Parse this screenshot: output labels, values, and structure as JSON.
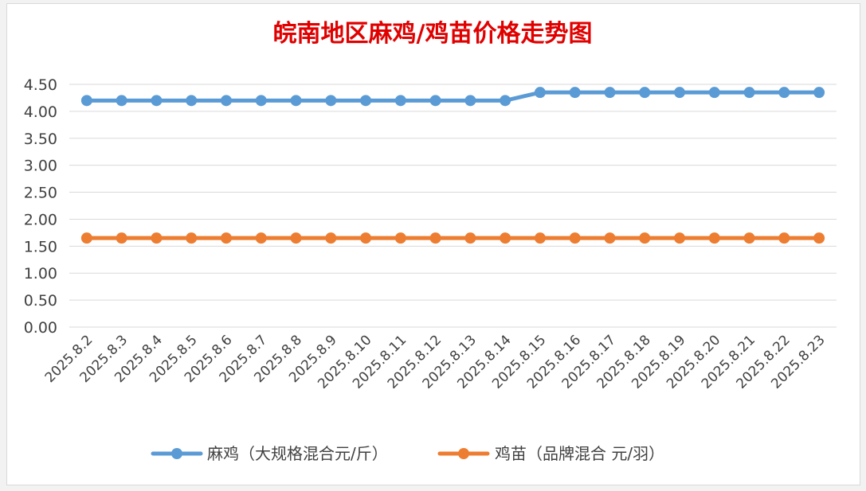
{
  "chart_data": {
    "type": "line",
    "title": "皖南地区麻鸡/鸡苗价格走势图",
    "title_color": "#e00000",
    "categories": [
      "2025.8.2",
      "2025.8.3",
      "2025.8.4",
      "2025.8.5",
      "2025.8.6",
      "2025.8.7",
      "2025.8.8",
      "2025.8.9",
      "2025.8.10",
      "2025.8.11",
      "2025.8.12",
      "2025.8.13",
      "2025.8.14",
      "2025.8.15",
      "2025.8.16",
      "2025.8.17",
      "2025.8.18",
      "2025.8.19",
      "2025.8.20",
      "2025.8.21",
      "2025.8.22",
      "2025.8.23"
    ],
    "series": [
      {
        "name": "麻鸡（大规格混合元/斤）",
        "color": "#5b9bd5",
        "values": [
          4.2,
          4.2,
          4.2,
          4.2,
          4.2,
          4.2,
          4.2,
          4.2,
          4.2,
          4.2,
          4.2,
          4.2,
          4.2,
          4.35,
          4.35,
          4.35,
          4.35,
          4.35,
          4.35,
          4.35,
          4.35,
          4.35
        ]
      },
      {
        "name": "鸡苗（品牌混合 元/羽）",
        "color": "#ed7d31",
        "values": [
          1.65,
          1.65,
          1.65,
          1.65,
          1.65,
          1.65,
          1.65,
          1.65,
          1.65,
          1.65,
          1.65,
          1.65,
          1.65,
          1.65,
          1.65,
          1.65,
          1.65,
          1.65,
          1.65,
          1.65,
          1.65,
          1.65
        ]
      }
    ],
    "ylim": [
      0,
      4.5
    ],
    "yticks": [
      "0.00",
      "0.50",
      "1.00",
      "1.50",
      "2.00",
      "2.50",
      "3.00",
      "3.50",
      "4.00",
      "4.50"
    ],
    "xlabel": "",
    "ylabel": "",
    "grid": true,
    "legend_position": "bottom"
  }
}
